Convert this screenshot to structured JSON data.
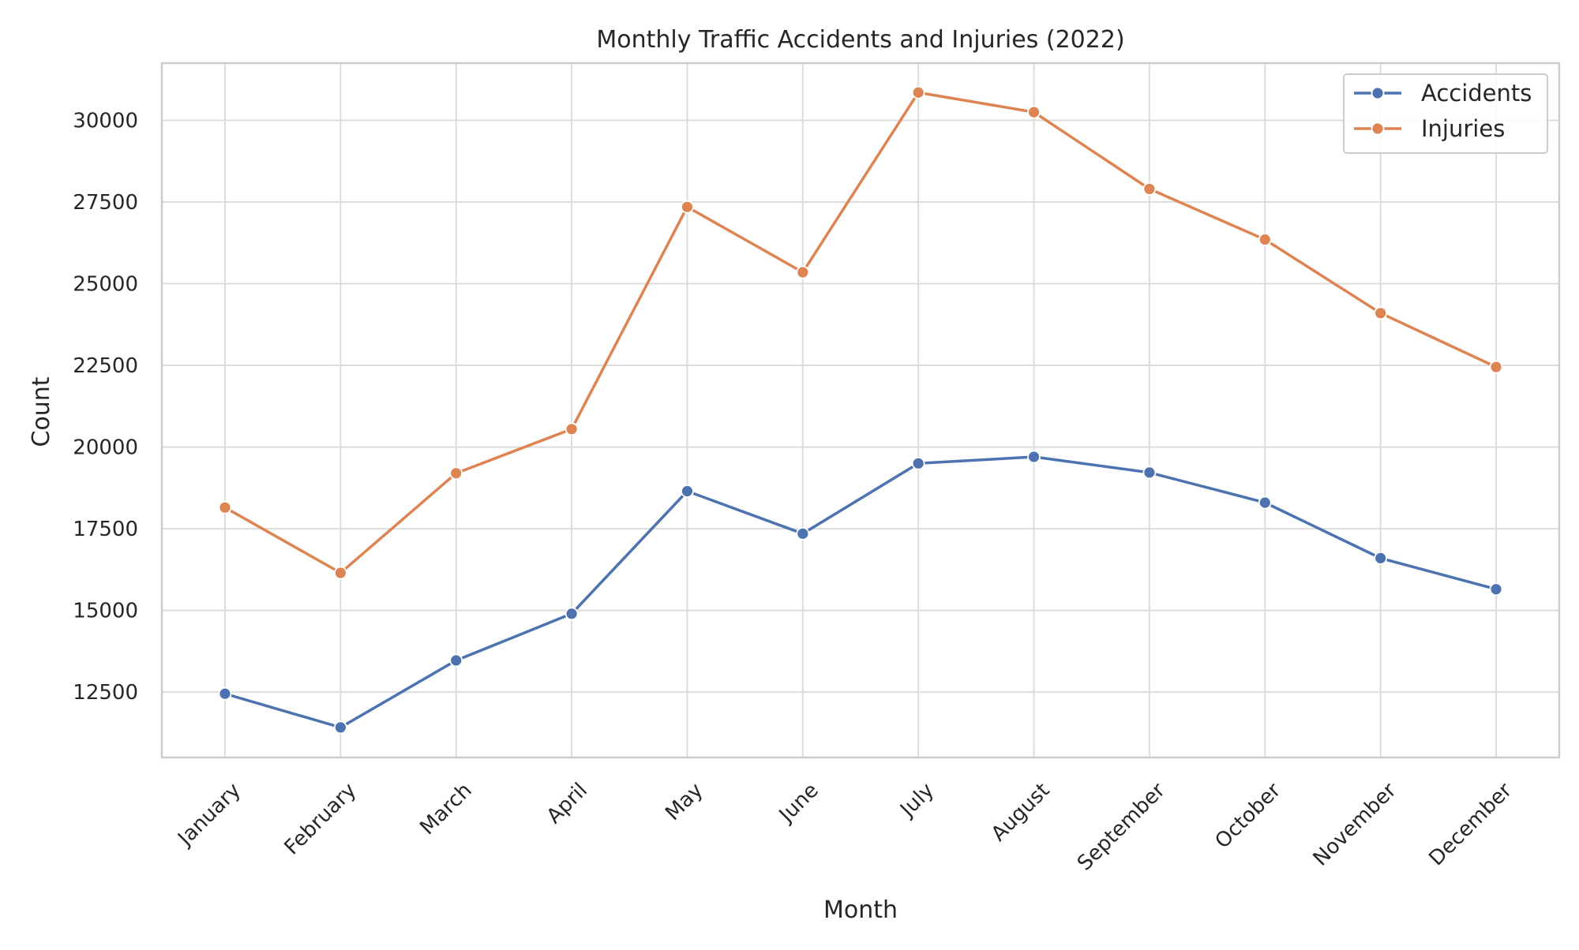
{
  "chart_data": {
    "type": "line",
    "title": "Monthly Traffic Accidents and Injuries (2022)",
    "xlabel": "Month",
    "ylabel": "Count",
    "categories": [
      "January",
      "February",
      "March",
      "April",
      "May",
      "June",
      "July",
      "August",
      "September",
      "October",
      "November",
      "December"
    ],
    "series": [
      {
        "name": "Accidents",
        "color": "#4c72b0",
        "values": [
          12450,
          11420,
          13470,
          14900,
          18650,
          17350,
          19500,
          19700,
          19220,
          18300,
          16600,
          15650
        ]
      },
      {
        "name": "Injuries",
        "color": "#dd8452",
        "values": [
          18150,
          16150,
          19200,
          20550,
          27350,
          25350,
          30850,
          30250,
          27900,
          26350,
          24100,
          22450
        ]
      }
    ],
    "ylim": [
      10500,
      31750
    ],
    "yticks": [
      12500,
      15000,
      17500,
      20000,
      22500,
      25000,
      27500,
      30000
    ],
    "grid": true,
    "legend_position": "top-right"
  }
}
